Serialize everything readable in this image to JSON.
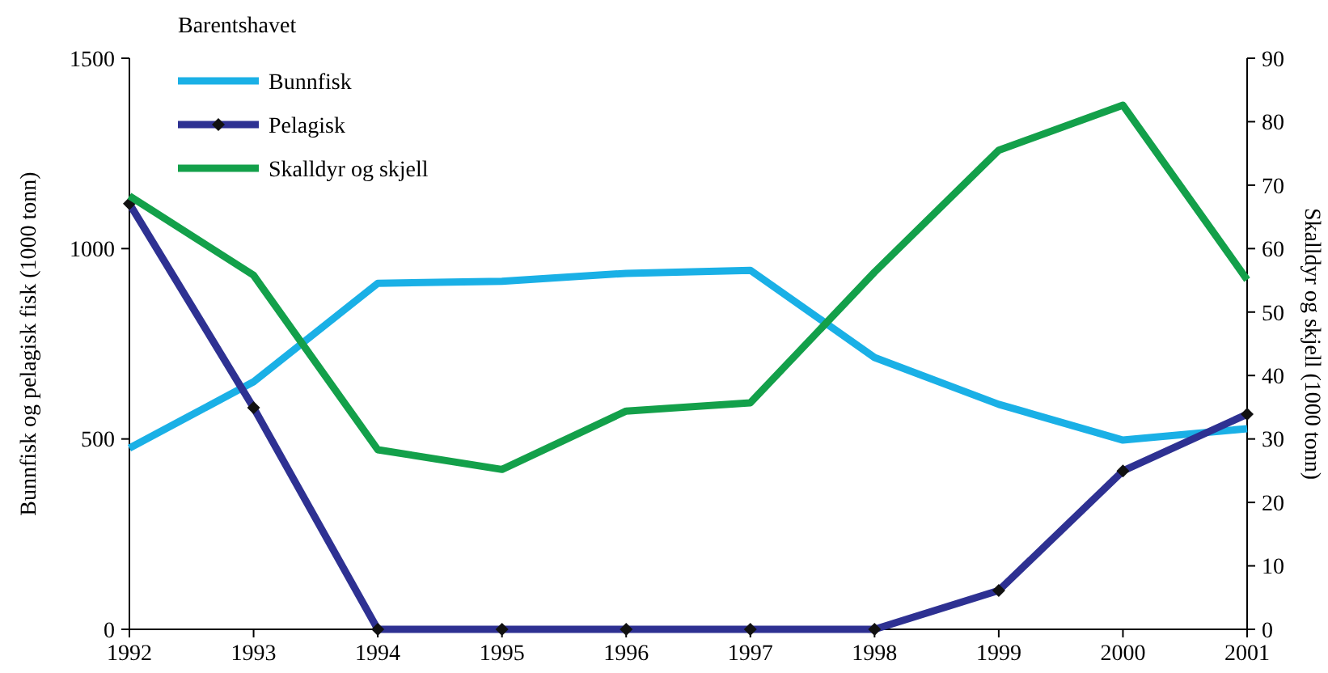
{
  "chart_data": {
    "type": "line",
    "legend_title": "Barentshavet",
    "legend": "top left",
    "ylabel": "Bunnfisk og pelagisk fisk (1000 tonn)",
    "y2label": "Skalldyr og skjell (1000 tonn)",
    "categories": [
      "1992",
      "1993",
      "1994",
      "1995",
      "1996",
      "1997",
      "1998",
      "1999",
      "2000",
      "2001"
    ],
    "ylim": [
      0,
      1500
    ],
    "yticks": [
      0,
      500,
      1000,
      1500
    ],
    "y2lim": [
      0,
      90
    ],
    "y2ticks": [
      0,
      10,
      20,
      30,
      40,
      50,
      60,
      70,
      80,
      90
    ],
    "grid": false,
    "series": [
      {
        "name": "Bunnfisk",
        "color": "#1ab0e6",
        "marker": "none",
        "values": [
          476,
          650,
          909,
          914,
          935,
          943,
          714,
          591,
          497,
          527
        ]
      },
      {
        "name": "Pelagisk",
        "color": "#2e3192",
        "marker": "diamond",
        "values": [
          1118,
          582,
          0,
          0,
          0,
          0,
          0,
          102,
          416,
          565
        ]
      },
      {
        "name": "Skalldyr og skjell",
        "color": "#13a04a",
        "marker": "none",
        "axis": "y2",
        "values": [
          68.3,
          55.8,
          28.3,
          25.2,
          34.4,
          35.7,
          56.3,
          75.5,
          82.6,
          55.1
        ]
      }
    ]
  }
}
